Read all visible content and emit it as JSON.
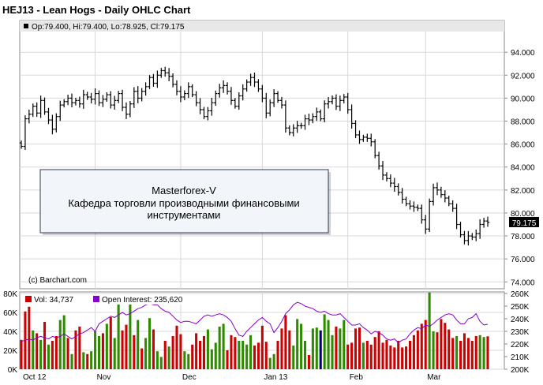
{
  "chart_data": {
    "type": "ohlc",
    "title": "HEJ13 - Lean Hogs - Daily OHLC Chart",
    "ohlc_readout": "Op:79.400, Hi:79.400, Lo:78.925, Cl:79.175",
    "last_price": "79.175",
    "copyright": "(c) Barchart.com",
    "annotation": {
      "line1": "Masterforex-V",
      "line2": "Кафедра торговли производными финансовыми",
      "line3": "инструментами"
    },
    "x_labels": [
      "Oct 12",
      "Nov",
      "Dec",
      "Jan 13",
      "Feb",
      "Mar"
    ],
    "x_label_index": [
      0,
      19,
      41,
      62,
      84,
      104
    ],
    "price_axis": {
      "ticks": [
        "94.000",
        "92.000",
        "90.000",
        "88.000",
        "86.000",
        "84.000",
        "82.000",
        "80.000",
        "78.000",
        "76.000",
        "74.000"
      ],
      "range": [
        73.4,
        95.8
      ],
      "grid": true
    },
    "volume_axis": {
      "ticks": [
        "80K",
        "60K",
        "40K",
        "20K",
        "0K"
      ],
      "range": [
        0,
        80000
      ]
    },
    "oi_axis": {
      "ticks": [
        "260K",
        "250K",
        "240K",
        "230K",
        "220K",
        "210K",
        "200K"
      ],
      "range": [
        200000,
        260000
      ]
    },
    "legend": {
      "volume": "Vol: 34,737",
      "open_interest": "Open Interest: 235,620",
      "volume_color": "#cc0000",
      "oi_color": "#8800cc"
    },
    "closes": [
      85.8,
      88.2,
      88.6,
      89.3,
      88.7,
      89.8,
      88.8,
      88.1,
      87.3,
      88.4,
      89.4,
      89.7,
      90.0,
      89.6,
      89.8,
      89.5,
      90.3,
      90.1,
      89.9,
      90.4,
      89.6,
      89.9,
      90.3,
      89.4,
      89.8,
      90.4,
      89.2,
      88.6,
      89.5,
      90.6,
      90.0,
      90.6,
      91.0,
      91.8,
      91.3,
      92.0,
      92.4,
      92.2,
      91.9,
      91.2,
      90.6,
      90.1,
      90.4,
      91.0,
      90.3,
      89.6,
      89.0,
      88.4,
      88.9,
      89.6,
      90.4,
      90.9,
      91.1,
      90.6,
      89.8,
      89.3,
      90.2,
      90.8,
      91.4,
      91.8,
      91.4,
      90.8,
      90.0,
      88.7,
      89.6,
      90.4,
      89.8,
      89.4,
      87.4,
      87.0,
      87.4,
      87.6,
      87.6,
      88.2,
      88.1,
      88.4,
      88.8,
      88.2,
      89.5,
      89.7,
      90.0,
      89.3,
      89.8,
      90.1,
      89.0,
      87.8,
      86.8,
      86.4,
      86.6,
      86.5,
      86.2,
      85.0,
      84.1,
      83.3,
      83.0,
      82.6,
      82.3,
      81.8,
      81.2,
      80.8,
      80.6,
      80.5,
      80.4,
      79.4,
      78.6,
      81.0,
      82.2,
      82.0,
      81.6,
      81.3,
      80.8,
      80.4,
      79.0,
      78.1,
      77.6,
      78.0,
      77.9,
      78.2,
      79.0,
      79.3,
      79.175
    ],
    "volume_colors": [
      "r",
      "r",
      "r",
      "g",
      "r",
      "g",
      "r",
      "g",
      "r",
      "r",
      "g",
      "g",
      "r",
      "g",
      "r",
      "r",
      "g",
      "r",
      "g",
      "g",
      "g",
      "r",
      "g",
      "r",
      "g",
      "g",
      "r",
      "r",
      "g",
      "r",
      "g",
      "r",
      "g",
      "g",
      "r",
      "g",
      "g",
      "r",
      "g",
      "r",
      "r",
      "r",
      "g",
      "g",
      "r",
      "r",
      "r",
      "r",
      "g",
      "g",
      "g",
      "g",
      "g",
      "r",
      "r",
      "r",
      "g",
      "g",
      "g",
      "g",
      "r",
      "r",
      "r",
      "r",
      "g",
      "g",
      "r",
      "r",
      "r",
      "r",
      "g",
      "g",
      "g",
      "g",
      "r",
      "g",
      "g",
      "b",
      "g",
      "g",
      "g",
      "r",
      "g",
      "g",
      "r",
      "r",
      "r",
      "r",
      "g",
      "r",
      "r",
      "r",
      "r",
      "r",
      "r",
      "r",
      "r",
      "r",
      "r",
      "r",
      "r",
      "r",
      "r",
      "r",
      "r",
      "g",
      "g",
      "r",
      "r",
      "r",
      "r",
      "r",
      "g",
      "r",
      "r",
      "r",
      "r",
      "r",
      "g",
      "g",
      "r"
    ],
    "volume": [
      31000,
      61000,
      66000,
      41000,
      38000,
      31000,
      50000,
      26000,
      30000,
      35000,
      52000,
      57000,
      33000,
      16000,
      41000,
      45000,
      18000,
      16000,
      19000,
      40000,
      35000,
      38000,
      48000,
      55000,
      33000,
      70000,
      41000,
      47000,
      73000,
      36000,
      52000,
      22000,
      33000,
      54000,
      42000,
      19000,
      13000,
      30000,
      24000,
      35000,
      46000,
      37000,
      19000,
      16000,
      26000,
      38000,
      30000,
      35000,
      42000,
      21000,
      28000,
      45000,
      48000,
      20000,
      36000,
      34000,
      30000,
      30000,
      26000,
      36000,
      25000,
      28000,
      46000,
      29000,
      12000,
      16000,
      30000,
      43000,
      57000,
      41000,
      25000,
      53000,
      48000,
      30000,
      15000,
      43000,
      44000,
      41000,
      58000,
      52000,
      36000,
      45000,
      43000,
      52000,
      26000,
      28000,
      43000,
      44000,
      28000,
      30000,
      26000,
      34000,
      40000,
      28000,
      31000,
      25000,
      23000,
      30000,
      23000,
      24000,
      30000,
      36000,
      41000,
      48000,
      52000,
      81000,
      40000,
      39000,
      53000,
      49000,
      42000,
      33000,
      35000,
      30000,
      38000,
      33000,
      30000,
      35000,
      36000,
      34000,
      34737
    ],
    "open_interest": [
      222000,
      223000,
      224000,
      223000,
      225000,
      226000,
      225000,
      224000,
      226000,
      225000,
      226000,
      228000,
      226000,
      224000,
      226000,
      228000,
      229000,
      231000,
      233000,
      230000,
      236000,
      238000,
      240000,
      242000,
      241000,
      243000,
      245000,
      243000,
      244000,
      246000,
      248000,
      249000,
      251000,
      252000,
      251000,
      251000,
      248000,
      246000,
      245000,
      242000,
      239000,
      237000,
      238000,
      238000,
      237000,
      236000,
      239000,
      242000,
      243000,
      242000,
      243000,
      244000,
      243000,
      241000,
      238000,
      232000,
      227000,
      226000,
      230000,
      233000,
      236000,
      239000,
      241000,
      238000,
      236000,
      229000,
      233000,
      238000,
      244000,
      247000,
      251000,
      253000,
      252000,
      250000,
      249000,
      248000,
      246000,
      245000,
      246000,
      244000,
      243000,
      243000,
      244000,
      241000,
      238000,
      235000,
      235000,
      236000,
      233000,
      231000,
      228000,
      230000,
      229000,
      227000,
      224000,
      223000,
      224000,
      221000,
      223000,
      224000,
      228000,
      231000,
      233000,
      232000,
      235000,
      234000,
      236000,
      239000,
      241000,
      243000,
      244000,
      243000,
      239000,
      236000,
      236000,
      240000,
      241000,
      244000,
      238000,
      235000,
      235620
    ]
  }
}
